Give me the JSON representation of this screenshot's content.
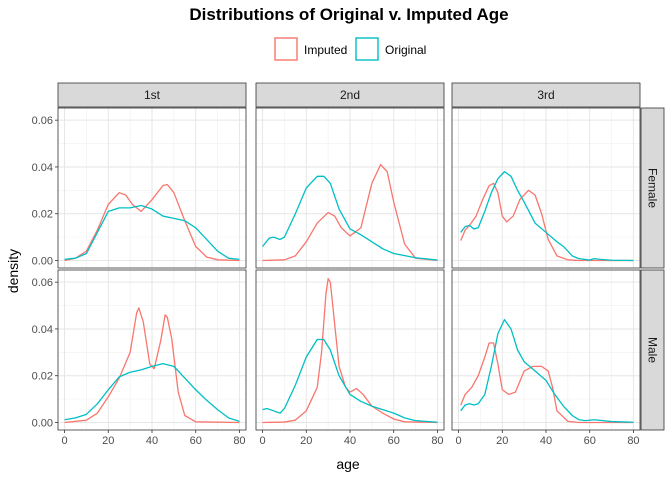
{
  "chart_data": {
    "type": "line",
    "title": "Distributions of Original v. Imputed Age",
    "xlabel": "age",
    "ylabel": "density",
    "xlim": [
      -3,
      83
    ],
    "ylim": [
      -0.0032,
      0.0652
    ],
    "xticks": [
      0,
      20,
      40,
      60,
      80
    ],
    "yticks": [
      0.0,
      0.02,
      0.04,
      0.06
    ],
    "ytick_labels": [
      "0.00",
      "0.02",
      "0.04",
      "0.06"
    ],
    "grid": true,
    "legend_position": "top",
    "columns": [
      "1st",
      "2nd",
      "3rd"
    ],
    "rows": [
      "Female",
      "Male"
    ],
    "series": [
      {
        "name": "Imputed",
        "color": "#F8766D"
      },
      {
        "name": "Original",
        "color": "#00BFC4"
      }
    ],
    "panels": [
      {
        "column": "1st",
        "row": "Female",
        "Imputed": [
          [
            0,
            0.0
          ],
          [
            5,
            0.001
          ],
          [
            10,
            0.004
          ],
          [
            15,
            0.013
          ],
          [
            20,
            0.024
          ],
          [
            25,
            0.029
          ],
          [
            28,
            0.028
          ],
          [
            31,
            0.024
          ],
          [
            35,
            0.021
          ],
          [
            40,
            0.026
          ],
          [
            45,
            0.032
          ],
          [
            47,
            0.0325
          ],
          [
            50,
            0.029
          ],
          [
            55,
            0.017
          ],
          [
            60,
            0.006
          ],
          [
            65,
            0.0015
          ],
          [
            70,
            0.0003
          ],
          [
            80,
            0.0
          ]
        ],
        "Original": [
          [
            0,
            0.0005
          ],
          [
            5,
            0.001
          ],
          [
            10,
            0.003
          ],
          [
            15,
            0.012
          ],
          [
            20,
            0.021
          ],
          [
            25,
            0.0225
          ],
          [
            30,
            0.0225
          ],
          [
            35,
            0.0235
          ],
          [
            40,
            0.022
          ],
          [
            45,
            0.019
          ],
          [
            50,
            0.018
          ],
          [
            55,
            0.017
          ],
          [
            60,
            0.014
          ],
          [
            65,
            0.009
          ],
          [
            70,
            0.004
          ],
          [
            75,
            0.001
          ],
          [
            80,
            0.0005
          ]
        ]
      },
      {
        "column": "2nd",
        "row": "Female",
        "Imputed": [
          [
            0,
            0.0
          ],
          [
            10,
            0.0003
          ],
          [
            15,
            0.002
          ],
          [
            20,
            0.008
          ],
          [
            25,
            0.016
          ],
          [
            30,
            0.0205
          ],
          [
            33,
            0.019
          ],
          [
            36,
            0.014
          ],
          [
            40,
            0.0105
          ],
          [
            45,
            0.014
          ],
          [
            50,
            0.033
          ],
          [
            54,
            0.041
          ],
          [
            57,
            0.038
          ],
          [
            60,
            0.025
          ],
          [
            65,
            0.007
          ],
          [
            70,
            0.001
          ],
          [
            80,
            0.0
          ]
        ],
        "Original": [
          [
            0,
            0.006
          ],
          [
            3,
            0.0095
          ],
          [
            5,
            0.01
          ],
          [
            8,
            0.009
          ],
          [
            10,
            0.01
          ],
          [
            15,
            0.02
          ],
          [
            20,
            0.031
          ],
          [
            25,
            0.036
          ],
          [
            28,
            0.036
          ],
          [
            31,
            0.033
          ],
          [
            35,
            0.022
          ],
          [
            40,
            0.0135
          ],
          [
            45,
            0.011
          ],
          [
            50,
            0.008
          ],
          [
            55,
            0.005
          ],
          [
            60,
            0.003
          ],
          [
            70,
            0.0012
          ],
          [
            80,
            0.0002
          ]
        ]
      },
      {
        "column": "3rd",
        "row": "Female",
        "Imputed": [
          [
            1,
            0.0085
          ],
          [
            3,
            0.013
          ],
          [
            5,
            0.015
          ],
          [
            8,
            0.019
          ],
          [
            11,
            0.026
          ],
          [
            14,
            0.032
          ],
          [
            16,
            0.033
          ],
          [
            18,
            0.029
          ],
          [
            20,
            0.019
          ],
          [
            22,
            0.0165
          ],
          [
            25,
            0.019
          ],
          [
            28,
            0.026
          ],
          [
            32,
            0.03
          ],
          [
            35,
            0.028
          ],
          [
            38,
            0.02
          ],
          [
            41,
            0.009
          ],
          [
            45,
            0.002
          ],
          [
            50,
            0.0003
          ],
          [
            55,
            0.0
          ],
          [
            80,
            0.0
          ]
        ],
        "Original": [
          [
            1,
            0.012
          ],
          [
            3,
            0.0145
          ],
          [
            5,
            0.015
          ],
          [
            7,
            0.0135
          ],
          [
            9,
            0.014
          ],
          [
            12,
            0.021
          ],
          [
            15,
            0.029
          ],
          [
            18,
            0.035
          ],
          [
            21,
            0.038
          ],
          [
            24,
            0.036
          ],
          [
            27,
            0.03
          ],
          [
            30,
            0.025
          ],
          [
            35,
            0.016
          ],
          [
            40,
            0.012
          ],
          [
            45,
            0.008
          ],
          [
            48,
            0.006
          ],
          [
            52,
            0.002
          ],
          [
            55,
            0.0008
          ],
          [
            60,
            0.0002
          ],
          [
            62,
            0.0008
          ],
          [
            65,
            0.0005
          ],
          [
            70,
            0.0001
          ],
          [
            80,
            0.0
          ]
        ]
      },
      {
        "column": "1st",
        "row": "Male",
        "Imputed": [
          [
            0,
            0.0
          ],
          [
            10,
            0.001
          ],
          [
            15,
            0.004
          ],
          [
            20,
            0.011
          ],
          [
            25,
            0.019
          ],
          [
            30,
            0.03
          ],
          [
            33,
            0.047
          ],
          [
            34,
            0.049
          ],
          [
            36,
            0.043
          ],
          [
            39,
            0.025
          ],
          [
            41,
            0.023
          ],
          [
            44,
            0.035
          ],
          [
            46,
            0.046
          ],
          [
            47,
            0.045
          ],
          [
            49,
            0.036
          ],
          [
            52,
            0.013
          ],
          [
            55,
            0.003
          ],
          [
            60,
            0.0003
          ],
          [
            80,
            0.0
          ]
        ],
        "Original": [
          [
            0,
            0.0012
          ],
          [
            5,
            0.002
          ],
          [
            10,
            0.0035
          ],
          [
            15,
            0.008
          ],
          [
            20,
            0.014
          ],
          [
            25,
            0.0195
          ],
          [
            30,
            0.0215
          ],
          [
            35,
            0.0225
          ],
          [
            40,
            0.024
          ],
          [
            45,
            0.0252
          ],
          [
            50,
            0.024
          ],
          [
            55,
            0.019
          ],
          [
            60,
            0.014
          ],
          [
            65,
            0.0095
          ],
          [
            70,
            0.0055
          ],
          [
            75,
            0.002
          ],
          [
            80,
            0.0005
          ]
        ]
      },
      {
        "column": "2nd",
        "row": "Male",
        "Imputed": [
          [
            0,
            0.0
          ],
          [
            10,
            0.0002
          ],
          [
            15,
            0.001
          ],
          [
            20,
            0.005
          ],
          [
            25,
            0.015
          ],
          [
            27,
            0.03
          ],
          [
            29,
            0.055
          ],
          [
            30,
            0.0615
          ],
          [
            31,
            0.06
          ],
          [
            33,
            0.042
          ],
          [
            35,
            0.024
          ],
          [
            38,
            0.015
          ],
          [
            40,
            0.013
          ],
          [
            43,
            0.0145
          ],
          [
            46,
            0.012
          ],
          [
            50,
            0.007
          ],
          [
            55,
            0.004
          ],
          [
            60,
            0.0015
          ],
          [
            65,
            0.0003
          ],
          [
            80,
            0.0
          ]
        ],
        "Original": [
          [
            0,
            0.0055
          ],
          [
            2,
            0.006
          ],
          [
            5,
            0.005
          ],
          [
            8,
            0.004
          ],
          [
            10,
            0.006
          ],
          [
            15,
            0.016
          ],
          [
            20,
            0.028
          ],
          [
            25,
            0.0355
          ],
          [
            28,
            0.0355
          ],
          [
            31,
            0.031
          ],
          [
            35,
            0.02
          ],
          [
            40,
            0.012
          ],
          [
            45,
            0.009
          ],
          [
            50,
            0.007
          ],
          [
            55,
            0.0055
          ],
          [
            60,
            0.004
          ],
          [
            65,
            0.002
          ],
          [
            70,
            0.0008
          ],
          [
            80,
            0.0001
          ]
        ]
      },
      {
        "column": "3rd",
        "row": "Male",
        "Imputed": [
          [
            1,
            0.0075
          ],
          [
            3,
            0.012
          ],
          [
            6,
            0.015
          ],
          [
            9,
            0.02
          ],
          [
            12,
            0.028
          ],
          [
            14,
            0.034
          ],
          [
            16,
            0.034
          ],
          [
            18,
            0.025
          ],
          [
            20,
            0.014
          ],
          [
            23,
            0.012
          ],
          [
            26,
            0.013
          ],
          [
            30,
            0.022
          ],
          [
            34,
            0.024
          ],
          [
            38,
            0.024
          ],
          [
            41,
            0.022
          ],
          [
            43,
            0.015
          ],
          [
            45,
            0.005
          ],
          [
            50,
            0.0005
          ],
          [
            55,
            0.0
          ],
          [
            80,
            0.0
          ]
        ],
        "Original": [
          [
            1,
            0.005
          ],
          [
            3,
            0.0075
          ],
          [
            5,
            0.008
          ],
          [
            7,
            0.0075
          ],
          [
            9,
            0.008
          ],
          [
            12,
            0.012
          ],
          [
            15,
            0.024
          ],
          [
            18,
            0.038
          ],
          [
            21,
            0.044
          ],
          [
            24,
            0.04
          ],
          [
            27,
            0.031
          ],
          [
            30,
            0.026
          ],
          [
            35,
            0.022
          ],
          [
            40,
            0.018
          ],
          [
            44,
            0.012
          ],
          [
            48,
            0.007
          ],
          [
            52,
            0.003
          ],
          [
            55,
            0.0012
          ],
          [
            58,
            0.0008
          ],
          [
            62,
            0.0012
          ],
          [
            66,
            0.0008
          ],
          [
            70,
            0.0004
          ],
          [
            80,
            0.0001
          ]
        ]
      }
    ]
  }
}
